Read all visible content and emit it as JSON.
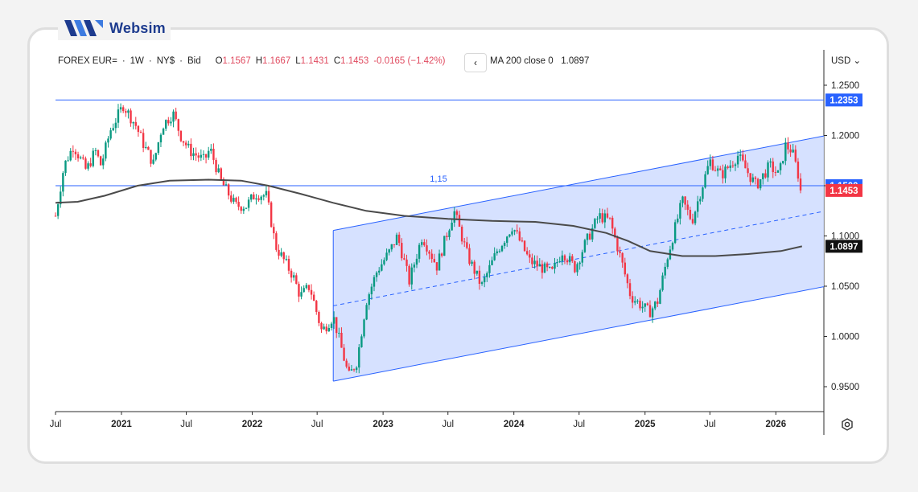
{
  "brand": {
    "name": "Websim"
  },
  "legend": {
    "symbol": "FOREX EUR=",
    "dot1": "·",
    "interval": "1W",
    "dot2": "·",
    "exchange": "NY$",
    "dot3": "·",
    "quote": "Bid",
    "o_label": "O",
    "o_value": "1.1567",
    "h_label": "H",
    "h_value": "1.1667",
    "l_label": "L",
    "l_value": "1.1431",
    "c_label": "C",
    "c_value": "1.1453",
    "change": "-0.0165 (−1.42%)",
    "collapse_icon": "‹",
    "ma_label": "MA 200 close 0",
    "ma_value": "1.0897"
  },
  "currency_menu": "USD ⌄",
  "colors": {
    "up": "#089981",
    "down": "#f23645",
    "ma": "#4a4a4a",
    "channel_line": "#2962ff",
    "channel_fill": "#cfdcff",
    "hline": "#2962ff",
    "last_price": "#f23645"
  },
  "chart_data": {
    "type": "candlestick",
    "title": "FOREX EUR= · 1W · NY$ · Bid",
    "y_range": [
      0.93,
      1.27
    ],
    "y_ticks": [
      "1.2500",
      "1.2000",
      "1.1500",
      "1.1000",
      "1.0500",
      "1.0000",
      "0.9500"
    ],
    "x_range": [
      "2020-07-01",
      "2026-05-15"
    ],
    "x_ticks": [
      {
        "label": "Jul",
        "date": "2020-07-01"
      },
      {
        "label": "2021",
        "date": "2021-01-01"
      },
      {
        "label": "Jul",
        "date": "2021-07-01"
      },
      {
        "label": "2022",
        "date": "2022-01-01"
      },
      {
        "label": "Jul",
        "date": "2022-07-01"
      },
      {
        "label": "2023",
        "date": "2023-01-01"
      },
      {
        "label": "Jul",
        "date": "2023-07-01"
      },
      {
        "label": "2024",
        "date": "2024-01-01"
      },
      {
        "label": "Jul",
        "date": "2024-07-01"
      },
      {
        "label": "2025",
        "date": "2025-01-01"
      },
      {
        "label": "Jul",
        "date": "2025-07-01"
      },
      {
        "label": "2026",
        "date": "2026-01-01"
      }
    ],
    "close_path": [
      [
        "2020-07-01",
        1.12
      ],
      [
        "2020-07-25",
        1.17
      ],
      [
        "2020-08-20",
        1.19
      ],
      [
        "2020-09-25",
        1.165
      ],
      [
        "2020-10-20",
        1.185
      ],
      [
        "2020-11-05",
        1.17
      ],
      [
        "2020-12-01",
        1.205
      ],
      [
        "2021-01-06",
        1.23
      ],
      [
        "2021-02-10",
        1.21
      ],
      [
        "2021-03-05",
        1.19
      ],
      [
        "2021-03-31",
        1.172
      ],
      [
        "2021-04-25",
        1.21
      ],
      [
        "2021-05-25",
        1.222
      ],
      [
        "2021-06-15",
        1.2
      ],
      [
        "2021-07-10",
        1.185
      ],
      [
        "2021-08-20",
        1.175
      ],
      [
        "2021-09-05",
        1.187
      ],
      [
        "2021-10-05",
        1.155
      ],
      [
        "2021-11-15",
        1.13
      ],
      [
        "2021-12-15",
        1.13
      ],
      [
        "2022-01-10",
        1.142
      ],
      [
        "2022-02-10",
        1.14
      ],
      [
        "2022-03-07",
        1.09
      ],
      [
        "2022-04-25",
        1.06
      ],
      [
        "2022-05-15",
        1.04
      ],
      [
        "2022-06-10",
        1.05
      ],
      [
        "2022-07-14",
        1.005
      ],
      [
        "2022-08-15",
        1.02
      ],
      [
        "2022-09-27",
        0.96
      ],
      [
        "2022-10-20",
        0.975
      ],
      [
        "2022-11-15",
        1.035
      ],
      [
        "2022-12-15",
        1.065
      ],
      [
        "2023-01-20",
        1.085
      ],
      [
        "2023-02-10",
        1.1
      ],
      [
        "2023-03-15",
        1.055
      ],
      [
        "2023-04-20",
        1.1
      ],
      [
        "2023-05-31",
        1.07
      ],
      [
        "2023-07-18",
        1.125
      ],
      [
        "2023-08-25",
        1.08
      ],
      [
        "2023-10-03",
        1.05
      ],
      [
        "2023-11-15",
        1.085
      ],
      [
        "2023-12-28",
        1.11
      ],
      [
        "2024-02-14",
        1.075
      ],
      [
        "2024-04-16",
        1.063
      ],
      [
        "2024-05-15",
        1.085
      ],
      [
        "2024-06-20",
        1.068
      ],
      [
        "2024-07-15",
        1.09
      ],
      [
        "2024-08-25",
        1.12
      ],
      [
        "2024-09-25",
        1.115
      ],
      [
        "2024-10-25",
        1.078
      ],
      [
        "2024-11-22",
        1.04
      ],
      [
        "2025-01-13",
        1.024
      ],
      [
        "2025-02-05",
        1.035
      ],
      [
        "2025-03-05",
        1.08
      ],
      [
        "2025-04-15",
        1.135
      ],
      [
        "2025-05-12",
        1.115
      ],
      [
        "2025-06-10",
        1.15
      ],
      [
        "2025-07-01",
        1.175
      ],
      [
        "2025-08-01",
        1.16
      ],
      [
        "2025-09-17",
        1.18
      ],
      [
        "2025-10-20",
        1.16
      ],
      [
        "2025-11-07",
        1.15
      ],
      [
        "2025-12-15",
        1.17
      ],
      [
        "2026-01-10",
        1.16
      ],
      [
        "2026-01-27",
        1.19
      ],
      [
        "2026-02-15",
        1.185
      ],
      [
        "2026-03-05",
        1.16
      ],
      [
        "2026-03-15",
        1.1453
      ]
    ],
    "ma200": [
      [
        "2020-07-01",
        1.133
      ],
      [
        "2020-09-01",
        1.134
      ],
      [
        "2020-11-15",
        1.14
      ],
      [
        "2021-02-15",
        1.15
      ],
      [
        "2021-05-15",
        1.155
      ],
      [
        "2021-09-01",
        1.156
      ],
      [
        "2021-12-01",
        1.155
      ],
      [
        "2022-02-15",
        1.15
      ],
      [
        "2022-05-15",
        1.142
      ],
      [
        "2022-08-15",
        1.133
      ],
      [
        "2022-11-15",
        1.125
      ],
      [
        "2023-03-01",
        1.12
      ],
      [
        "2023-07-01",
        1.117
      ],
      [
        "2023-11-01",
        1.115
      ],
      [
        "2024-03-01",
        1.114
      ],
      [
        "2024-06-15",
        1.11
      ],
      [
        "2024-09-15",
        1.103
      ],
      [
        "2024-11-15",
        1.095
      ],
      [
        "2025-01-15",
        1.085
      ],
      [
        "2025-04-15",
        1.08
      ],
      [
        "2025-07-15",
        1.08
      ],
      [
        "2025-10-15",
        1.082
      ],
      [
        "2026-01-15",
        1.085
      ],
      [
        "2026-03-15",
        1.0897
      ]
    ],
    "channel": {
      "start_date": "2022-08-15",
      "end_date": "2026-05-15",
      "upper_start": 1.1055,
      "upper_end": 1.1995,
      "lower_start": 0.9555,
      "lower_end": 1.0495,
      "mid_start": 1.0305,
      "mid_end": 1.1245
    },
    "horizontal_lines": [
      {
        "value": 1.2353,
        "label": "1.2353"
      },
      {
        "value": 1.15,
        "label": "1.1500",
        "annotation": "1,15"
      }
    ],
    "price_labels": [
      {
        "value": 1.1453,
        "label": "1.1453",
        "kind": "last"
      },
      {
        "value": 1.0897,
        "label": "1.0897",
        "kind": "ma"
      }
    ]
  }
}
